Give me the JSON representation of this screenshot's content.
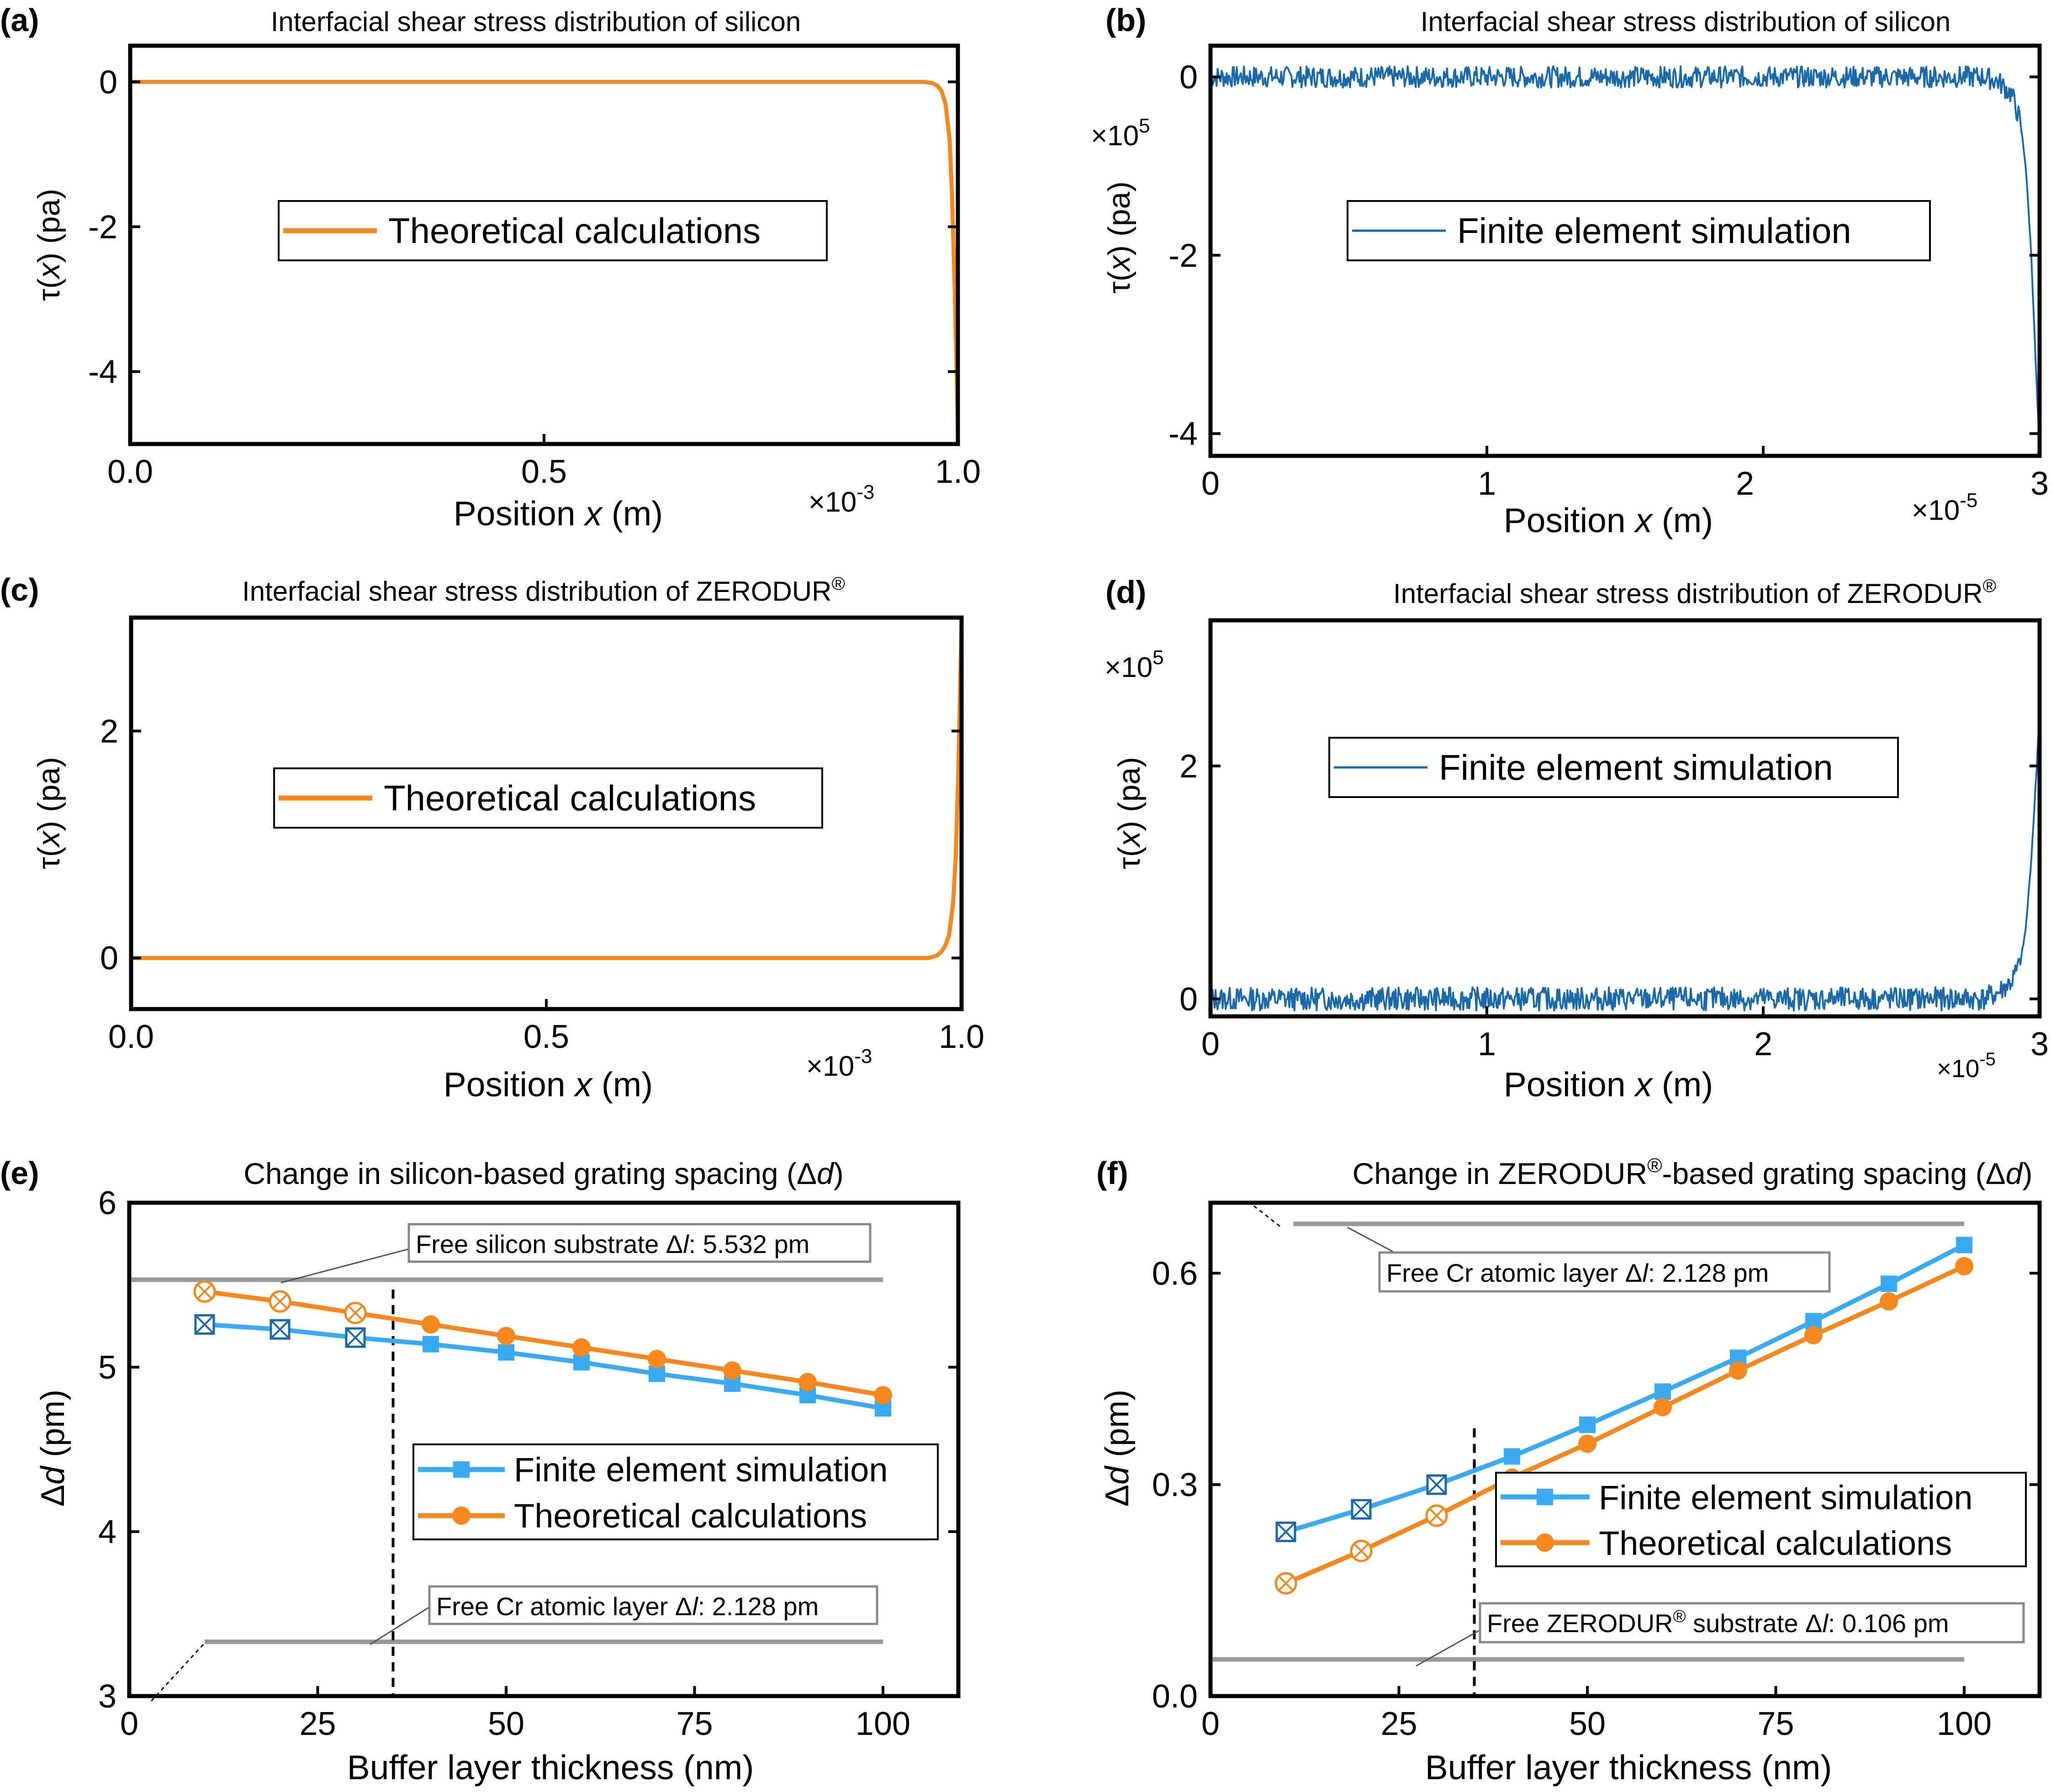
{
  "panels": [
    {
      "letter": "(a)",
      "title": "Interfacial shear stress distribution of silicon"
    },
    {
      "letter": "(b)",
      "title": "Interfacial shear stress distribution of silicon"
    },
    {
      "letter": "(c)",
      "title": "Interfacial shear stress distribution of ZERODUR",
      "title_sup": "®"
    },
    {
      "letter": "(d)",
      "title": "Interfacial shear stress distribution of ZERODUR",
      "title_sup": "®"
    },
    {
      "letter": "(e)",
      "title": "Change in silicon-based grating spacing (Δ",
      "title_it": "d",
      "title_end": ")"
    },
    {
      "letter": "(f)",
      "title": "Change in ZERODUR",
      "title_sup": "®",
      "title_mid": "-based grating spacing (Δ",
      "title_it": "d",
      "title_end": ")"
    }
  ],
  "labels": {
    "tau_pre": "τ(",
    "tau_it": "x",
    "tau_post": ") (pa)",
    "pos_pre": "Position ",
    "pos_it": "x",
    "pos_post": " (m)",
    "buffer_x": "Buffer layer thickness (nm)",
    "dd_pre": "Δ",
    "dd_it": "d",
    "dd_post": " (pm)",
    "mult_a": "×10",
    "exp_a": "-3",
    "mult_b": "×10",
    "exp_b": "-5",
    "mult_b_y": "×10",
    "exp_b_y": "5",
    "legend_theory": "Theoretical calculations",
    "legend_fem": "Finite element simulation",
    "ann_e_top": "Free silicon substrate Δ",
    "ann_e_top_it": "l",
    "ann_e_top_val": ": 5.532 pm",
    "ann_e_bot": "Free Cr atomic layer Δ",
    "ann_e_bot_it": "l",
    "ann_e_bot_val": ": 2.128 pm",
    "ann_f_top": "Free Cr atomic layer Δ",
    "ann_f_top_it": "l",
    "ann_f_top_val": ": 2.128 pm",
    "ann_f_bot": "Free ZERODUR",
    "ann_f_bot_sup": "®",
    "ann_f_bot_mid": " substrate Δ",
    "ann_f_bot_it": "l",
    "ann_f_bot_val": ": 0.106 pm"
  },
  "colors": {
    "orange": "#f7871f",
    "blue": "#1a6aab",
    "lightblue": "#3aabf0",
    "gray": "#999999"
  },
  "chart_data": [
    {
      "type": "line",
      "panel": "a",
      "xlim": [
        0,
        1.0
      ],
      "ylim": [
        -5,
        0.5
      ],
      "xticks": [
        0.0,
        0.5,
        1.0
      ],
      "xtick_labels": [
        "0.0",
        "0.5",
        "1.0"
      ],
      "yticks": [
        0,
        -2,
        -4
      ],
      "ytick_labels": [
        "0",
        "-2",
        "-4"
      ],
      "series": [
        {
          "name": "Theoretical calculations",
          "x": [
            0,
            0.5,
            0.96,
            0.97,
            0.975,
            0.98,
            0.985,
            0.99,
            0.993,
            0.996,
            0.998,
            1.0
          ],
          "y": [
            0,
            0,
            0,
            -0.02,
            -0.05,
            -0.12,
            -0.3,
            -0.8,
            -1.6,
            -2.8,
            -3.8,
            -4.8
          ]
        }
      ]
    },
    {
      "type": "line",
      "panel": "b",
      "xlim": [
        0,
        3
      ],
      "ylim": [
        -4.25,
        0.35
      ],
      "xticks": [
        0,
        1,
        2,
        3
      ],
      "xtick_labels": [
        "0",
        "1",
        "2",
        "3"
      ],
      "yticks": [
        0,
        -2,
        -4
      ],
      "ytick_labels": [
        "0",
        "-2",
        "-4"
      ],
      "series": [
        {
          "name": "Finite element simulation",
          "noise": 0.12,
          "x": [
            0,
            2.8,
            2.85,
            2.9,
            2.93,
            2.95,
            2.97,
            2.99,
            3.0
          ],
          "y": [
            0,
            0,
            -0.05,
            -0.2,
            -0.5,
            -1.0,
            -2.0,
            -3.5,
            -4.2
          ]
        }
      ]
    },
    {
      "type": "line",
      "panel": "c",
      "xlim": [
        0,
        1.0
      ],
      "ylim": [
        -0.45,
        3.0
      ],
      "xticks": [
        0.0,
        0.5,
        1.0
      ],
      "xtick_labels": [
        "0.0",
        "0.5",
        "1.0"
      ],
      "yticks": [
        0,
        2
      ],
      "ytick_labels": [
        "0",
        "2"
      ],
      "series": [
        {
          "name": "Theoretical calculations",
          "x": [
            0,
            0.5,
            0.96,
            0.97,
            0.975,
            0.98,
            0.985,
            0.99,
            0.993,
            0.996,
            0.998,
            1.0
          ],
          "y": [
            0,
            0,
            0,
            0.02,
            0.05,
            0.1,
            0.2,
            0.5,
            0.9,
            1.6,
            2.3,
            2.95
          ]
        }
      ]
    },
    {
      "type": "line",
      "panel": "d",
      "xlim": [
        0,
        3
      ],
      "ylim": [
        -0.15,
        3.25
      ],
      "xticks": [
        0,
        1,
        2,
        3
      ],
      "xtick_labels": [
        "0",
        "1",
        "2",
        "3"
      ],
      "yticks": [
        0,
        2
      ],
      "ytick_labels": [
        "0",
        "2"
      ],
      "series": [
        {
          "name": "Finite element simulation",
          "noise": 0.1,
          "x": [
            0,
            2.8,
            2.85,
            2.9,
            2.93,
            2.95,
            2.97,
            2.99,
            3.0
          ],
          "y": [
            0,
            0,
            0.05,
            0.15,
            0.3,
            0.6,
            1.2,
            2.0,
            2.5
          ]
        }
      ]
    },
    {
      "type": "line",
      "panel": "e",
      "xlim": [
        0,
        110
      ],
      "ylim": [
        3,
        6
      ],
      "xticks": [
        0,
        25,
        50,
        75,
        100
      ],
      "xtick_labels": [
        "0",
        "25",
        "50",
        "75",
        "100"
      ],
      "yticks": [
        3,
        4,
        5,
        6
      ],
      "ytick_labels": [
        "3",
        "4",
        "5",
        "6"
      ],
      "x": [
        10,
        20,
        30,
        40,
        50,
        60,
        70,
        80,
        90,
        100
      ],
      "series": [
        {
          "name": "Finite element simulation",
          "y": [
            5.26,
            5.23,
            5.18,
            5.14,
            5.09,
            5.03,
            4.96,
            4.9,
            4.83,
            4.75
          ]
        },
        {
          "name": "Theoretical calculations",
          "y": [
            5.46,
            5.4,
            5.33,
            5.26,
            5.19,
            5.12,
            5.05,
            4.98,
            4.91,
            4.83
          ]
        }
      ],
      "hlines": [
        5.532,
        3.33
      ],
      "vline": 35
    },
    {
      "type": "line",
      "panel": "f",
      "xlim": [
        0,
        110
      ],
      "ylim": [
        0,
        0.7
      ],
      "xticks": [
        0,
        25,
        50,
        75,
        100
      ],
      "xtick_labels": [
        "0",
        "25",
        "50",
        "75",
        "100"
      ],
      "yticks": [
        0,
        0.3,
        0.6
      ],
      "ytick_labels": [
        "0.0",
        "0.3",
        "0.6"
      ],
      "x": [
        10,
        20,
        30,
        40,
        50,
        60,
        70,
        80,
        90,
        100
      ],
      "series": [
        {
          "name": "Finite element simulation",
          "y": [
            0.233,
            0.265,
            0.3,
            0.34,
            0.385,
            0.432,
            0.48,
            0.532,
            0.585,
            0.64
          ]
        },
        {
          "name": "Theoretical calculations",
          "y": [
            0.16,
            0.206,
            0.256,
            0.31,
            0.358,
            0.41,
            0.462,
            0.512,
            0.56,
            0.61
          ]
        }
      ],
      "hlines": [
        0.67,
        0.052
      ],
      "vline": 35
    }
  ]
}
